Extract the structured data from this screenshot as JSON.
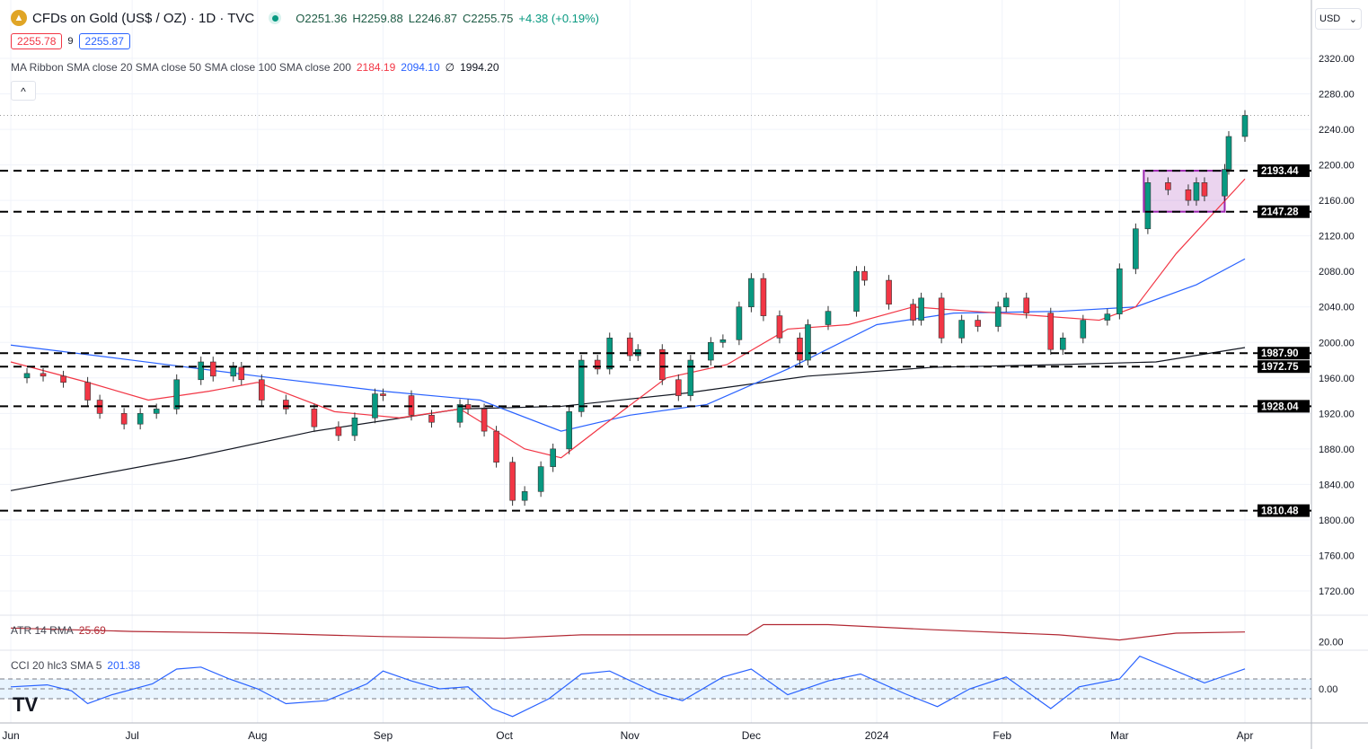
{
  "header": {
    "symbol": "CFDs on Gold (US$ / OZ) · 1D · TVC",
    "open": "O2251.36",
    "high": "H2259.88",
    "low": "L2246.87",
    "close": "C2255.75",
    "change": "+4.38 (+0.19%)",
    "bid": "2255.78",
    "spread": "9",
    "ask": "2255.87",
    "currency": "USD"
  },
  "indicators": {
    "ma_ribbon": {
      "label": "MA Ribbon SMA close 20 SMA close 50 SMA close 100 SMA close 200",
      "v20": "2184.19",
      "v50": "2094.10",
      "v100": "∅",
      "v200": "1994.20"
    },
    "atr": {
      "label": "ATR 14 RMA",
      "value": "25.69"
    },
    "cci": {
      "label": "CCI 20 hlc3 SMA 5",
      "value": "201.38"
    }
  },
  "colors": {
    "up": "#089981",
    "down": "#f23645",
    "sma20": "#f23645",
    "sma50": "#2962ff",
    "sma200": "#131722",
    "atr": "#b22833",
    "cci": "#2962ff",
    "box": "#9c27b0"
  },
  "chart_data": {
    "type": "candlestick",
    "ylim": [
      1700,
      2340
    ],
    "y_ticks": [
      "2320.00",
      "2280.00",
      "2240.00",
      "2200.00",
      "2160.00",
      "2120.00",
      "2080.00",
      "2040.00",
      "2000.00",
      "1960.00",
      "1920.00",
      "1880.00",
      "1840.00",
      "1800.00",
      "1760.00",
      "1720.00"
    ],
    "x_ticks": [
      [
        "2023-06-01",
        "Jun"
      ],
      [
        "2023-07-01",
        "Jul"
      ],
      [
        "2023-08-01",
        "Aug"
      ],
      [
        "2023-09-01",
        "Sep"
      ],
      [
        "2023-10-01",
        "Oct"
      ],
      [
        "2023-11-01",
        "Nov"
      ],
      [
        "2023-12-01",
        "Dec"
      ],
      [
        "2024-01-01",
        "2024"
      ],
      [
        "2024-02-01",
        "Feb"
      ],
      [
        "2024-03-01",
        "Mar"
      ],
      [
        "2024-04-01",
        "Apr"
      ]
    ],
    "closes": [
      [
        "2023-05-30",
        1960
      ],
      [
        "2023-06-05",
        1965
      ],
      [
        "2023-06-09",
        1962
      ],
      [
        "2023-06-14",
        1955
      ],
      [
        "2023-06-20",
        1935
      ],
      [
        "2023-06-23",
        1920
      ],
      [
        "2023-06-29",
        1908
      ],
      [
        "2023-07-03",
        1920
      ],
      [
        "2023-07-07",
        1925
      ],
      [
        "2023-07-12",
        1958
      ],
      [
        "2023-07-18",
        1978
      ],
      [
        "2023-07-21",
        1962
      ],
      [
        "2023-07-26",
        1972
      ],
      [
        "2023-07-28",
        1958
      ],
      [
        "2023-08-02",
        1935
      ],
      [
        "2023-08-08",
        1925
      ],
      [
        "2023-08-15",
        1905
      ],
      [
        "2023-08-21",
        1895
      ],
      [
        "2023-08-25",
        1915
      ],
      [
        "2023-08-30",
        1942
      ],
      [
        "2023-09-01",
        1940
      ],
      [
        "2023-09-08",
        1918
      ],
      [
        "2023-09-13",
        1910
      ],
      [
        "2023-09-20",
        1930
      ],
      [
        "2023-09-22",
        1925
      ],
      [
        "2023-09-26",
        1900
      ],
      [
        "2023-09-29",
        1865
      ],
      [
        "2023-10-03",
        1822
      ],
      [
        "2023-10-06",
        1832
      ],
      [
        "2023-10-10",
        1860
      ],
      [
        "2023-10-13",
        1880
      ],
      [
        "2023-10-17",
        1922
      ],
      [
        "2023-10-20",
        1980
      ],
      [
        "2023-10-24",
        1970
      ],
      [
        "2023-10-27",
        2005
      ],
      [
        "2023-11-01",
        1985
      ],
      [
        "2023-11-03",
        1992
      ],
      [
        "2023-11-09",
        1958
      ],
      [
        "2023-11-13",
        1940
      ],
      [
        "2023-11-16",
        1980
      ],
      [
        "2023-11-21",
        2000
      ],
      [
        "2023-11-24",
        2003
      ],
      [
        "2023-11-28",
        2040
      ],
      [
        "2023-12-01",
        2072
      ],
      [
        "2023-12-04",
        2030
      ],
      [
        "2023-12-08",
        2005
      ],
      [
        "2023-12-13",
        1980
      ],
      [
        "2023-12-15",
        2020
      ],
      [
        "2023-12-20",
        2035
      ],
      [
        "2023-12-27",
        2080
      ],
      [
        "2023-12-29",
        2070
      ],
      [
        "2024-01-04",
        2043
      ],
      [
        "2024-01-10",
        2025
      ],
      [
        "2024-01-12",
        2050
      ],
      [
        "2024-01-17",
        2005
      ],
      [
        "2024-01-22",
        2025
      ],
      [
        "2024-01-26",
        2018
      ],
      [
        "2024-01-31",
        2040
      ],
      [
        "2024-02-02",
        2050
      ],
      [
        "2024-02-07",
        2033
      ],
      [
        "2024-02-13",
        1992
      ],
      [
        "2024-02-16",
        2005
      ],
      [
        "2024-02-21",
        2025
      ],
      [
        "2024-02-27",
        2032
      ],
      [
        "2024-03-01",
        2083
      ],
      [
        "2024-03-05",
        2128
      ],
      [
        "2024-03-08",
        2180
      ],
      [
        "2024-03-13",
        2172
      ],
      [
        "2024-03-18",
        2160
      ],
      [
        "2024-03-20",
        2180
      ],
      [
        "2024-03-22",
        2165
      ],
      [
        "2024-03-27",
        2195
      ],
      [
        "2024-03-28",
        2232
      ],
      [
        "2024-04-01",
        2255.75
      ]
    ],
    "sma20": [
      [
        "2023-06-01",
        1978
      ],
      [
        "2023-06-20",
        1955
      ],
      [
        "2023-07-05",
        1935
      ],
      [
        "2023-07-20",
        1945
      ],
      [
        "2023-08-01",
        1955
      ],
      [
        "2023-08-20",
        1922
      ],
      [
        "2023-09-05",
        1915
      ],
      [
        "2023-09-20",
        1925
      ],
      [
        "2023-10-06",
        1880
      ],
      [
        "2023-10-15",
        1870
      ],
      [
        "2023-10-25",
        1905
      ],
      [
        "2023-11-10",
        1960
      ],
      [
        "2023-11-25",
        1975
      ],
      [
        "2023-12-10",
        2015
      ],
      [
        "2023-12-25",
        2020
      ],
      [
        "2024-01-10",
        2040
      ],
      [
        "2024-01-25",
        2035
      ],
      [
        "2024-02-10",
        2030
      ],
      [
        "2024-02-25",
        2025
      ],
      [
        "2024-03-05",
        2040
      ],
      [
        "2024-03-15",
        2100
      ],
      [
        "2024-04-01",
        2184.19
      ]
    ],
    "sma50": [
      [
        "2023-06-01",
        1997
      ],
      [
        "2023-07-01",
        1980
      ],
      [
        "2023-08-01",
        1962
      ],
      [
        "2023-09-01",
        1945
      ],
      [
        "2023-09-25",
        1935
      ],
      [
        "2023-10-15",
        1900
      ],
      [
        "2023-11-01",
        1918
      ],
      [
        "2023-11-20",
        1930
      ],
      [
        "2023-12-10",
        1970
      ],
      [
        "2024-01-01",
        2020
      ],
      [
        "2024-01-20",
        2033
      ],
      [
        "2024-02-15",
        2035
      ],
      [
        "2024-03-05",
        2040
      ],
      [
        "2024-03-20",
        2065
      ],
      [
        "2024-04-01",
        2094.1
      ]
    ],
    "sma200": [
      [
        "2023-06-01",
        1833
      ],
      [
        "2023-07-15",
        1870
      ],
      [
        "2023-08-15",
        1900
      ],
      [
        "2023-09-20",
        1925
      ],
      [
        "2023-10-15",
        1928
      ],
      [
        "2023-11-15",
        1943
      ],
      [
        "2023-12-15",
        1962
      ],
      [
        "2024-01-15",
        1972
      ],
      [
        "2024-02-15",
        1975
      ],
      [
        "2024-03-10",
        1978
      ],
      [
        "2024-04-01",
        1994.2
      ]
    ],
    "levels": [
      "2193.44",
      "2147.28",
      "1987.90",
      "1972.75",
      "1928.04",
      "1810.48"
    ],
    "range_box": {
      "from": "2024-03-07",
      "to": "2024-03-27",
      "low": 2147.28,
      "high": 2193.44
    },
    "atr": {
      "y_tick": "20.00",
      "ylim": [
        15,
        35
      ],
      "values": [
        [
          "2023-06-01",
          28
        ],
        [
          "2023-07-01",
          26
        ],
        [
          "2023-08-01",
          25
        ],
        [
          "2023-09-01",
          23
        ],
        [
          "2023-10-01",
          22
        ],
        [
          "2023-10-20",
          24
        ],
        [
          "2023-11-30",
          24
        ],
        [
          "2023-12-04",
          30
        ],
        [
          "2023-12-20",
          30
        ],
        [
          "2024-01-15",
          27
        ],
        [
          "2024-02-15",
          24
        ],
        [
          "2024-03-01",
          21
        ],
        [
          "2024-03-15",
          25
        ],
        [
          "2024-04-01",
          25.69
        ]
      ]
    },
    "cci": {
      "y_tick": "0.00",
      "ylim": [
        -320,
        350
      ],
      "band": [
        -100,
        100
      ],
      "values": [
        [
          "2023-06-01",
          20
        ],
        [
          "2023-06-10",
          40
        ],
        [
          "2023-06-16",
          -20
        ],
        [
          "2023-06-20",
          -150
        ],
        [
          "2023-06-26",
          -60
        ],
        [
          "2023-07-06",
          50
        ],
        [
          "2023-07-12",
          200
        ],
        [
          "2023-07-18",
          220
        ],
        [
          "2023-07-25",
          100
        ],
        [
          "2023-08-01",
          0
        ],
        [
          "2023-08-08",
          -150
        ],
        [
          "2023-08-18",
          -120
        ],
        [
          "2023-08-28",
          50
        ],
        [
          "2023-09-01",
          180
        ],
        [
          "2023-09-08",
          80
        ],
        [
          "2023-09-15",
          0
        ],
        [
          "2023-09-22",
          20
        ],
        [
          "2023-09-28",
          -200
        ],
        [
          "2023-10-03",
          -280
        ],
        [
          "2023-10-12",
          -100
        ],
        [
          "2023-10-20",
          150
        ],
        [
          "2023-10-27",
          180
        ],
        [
          "2023-11-08",
          -50
        ],
        [
          "2023-11-14",
          -120
        ],
        [
          "2023-11-24",
          120
        ],
        [
          "2023-12-01",
          200
        ],
        [
          "2023-12-10",
          -60
        ],
        [
          "2023-12-20",
          80
        ],
        [
          "2023-12-28",
          150
        ],
        [
          "2024-01-08",
          -50
        ],
        [
          "2024-01-16",
          -180
        ],
        [
          "2024-01-24",
          0
        ],
        [
          "2024-02-02",
          120
        ],
        [
          "2024-02-13",
          -200
        ],
        [
          "2024-02-20",
          20
        ],
        [
          "2024-03-01",
          100
        ],
        [
          "2024-03-06",
          330
        ],
        [
          "2024-03-15",
          180
        ],
        [
          "2024-03-22",
          60
        ],
        [
          "2024-04-01",
          201.38
        ]
      ]
    }
  }
}
